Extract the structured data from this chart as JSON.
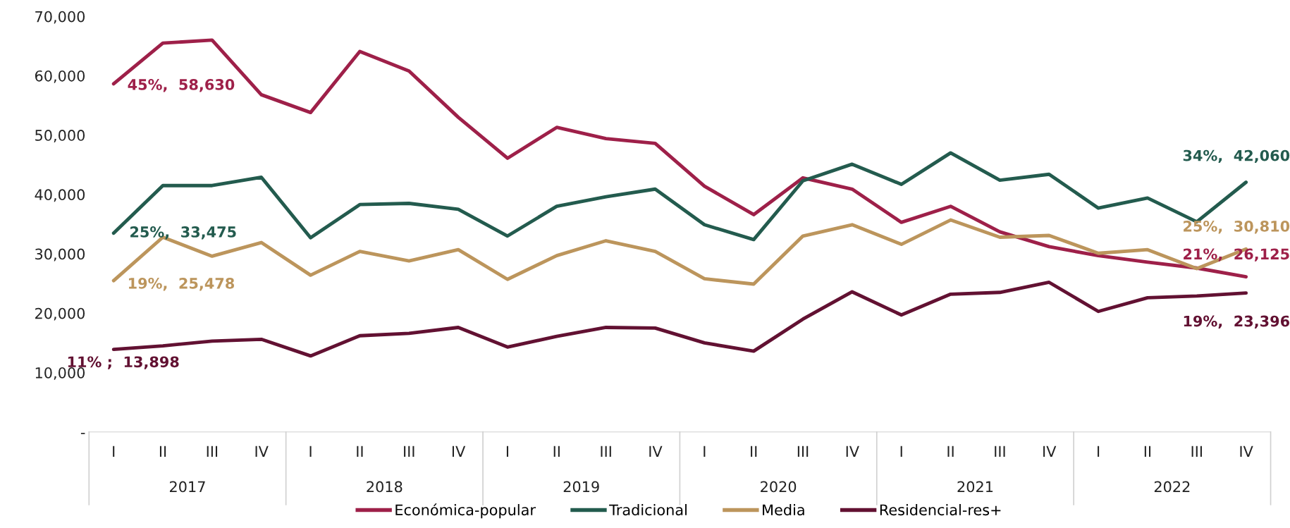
{
  "chart_data": {
    "type": "line",
    "categories": [
      "I",
      "II",
      "III",
      "IV",
      "I",
      "II",
      "III",
      "IV",
      "I",
      "II",
      "III",
      "IV",
      "I",
      "II",
      "III",
      "IV",
      "I",
      "II",
      "III",
      "IV",
      "I",
      "II",
      "III",
      "IV"
    ],
    "series": [
      {
        "name": "Económica-popular",
        "color": "#9e2049",
        "values": [
          58630,
          65500,
          66000,
          56800,
          53800,
          64100,
          60800,
          53000,
          46100,
          51300,
          49400,
          48600,
          41400,
          36600,
          42800,
          40900,
          35300,
          38000,
          33700,
          31200,
          29700,
          28600,
          27600,
          26125
        ],
        "value_labels": [
          "45%,  58,630",
          null,
          null,
          null,
          null,
          null,
          null,
          null,
          null,
          null,
          null,
          null,
          null,
          null,
          null,
          null,
          null,
          null,
          null,
          null,
          null,
          null,
          null,
          "21%,  26,125"
        ]
      },
      {
        "name": "Tradicional",
        "color": "#235b4e",
        "values": [
          33475,
          41500,
          41500,
          42900,
          32700,
          38300,
          38500,
          37500,
          33000,
          38000,
          39600,
          40900,
          34900,
          32400,
          42300,
          45100,
          41700,
          47000,
          42400,
          43400,
          37700,
          39400,
          35400,
          42060
        ],
        "value_labels": [
          "25%,  33,475",
          null,
          null,
          null,
          null,
          null,
          null,
          null,
          null,
          null,
          null,
          null,
          null,
          null,
          null,
          null,
          null,
          null,
          null,
          null,
          null,
          null,
          null,
          "34%,  42,060"
        ]
      },
      {
        "name": "Media",
        "color": "#bc955c",
        "values": [
          25478,
          32800,
          29600,
          31900,
          26400,
          30400,
          28800,
          30700,
          25700,
          29700,
          32200,
          30400,
          25800,
          24900,
          33000,
          34900,
          31600,
          35700,
          32800,
          33100,
          30100,
          30700,
          27500,
          30810
        ],
        "value_labels": [
          "19%,  25,478",
          null,
          null,
          null,
          null,
          null,
          null,
          null,
          null,
          null,
          null,
          null,
          null,
          null,
          null,
          null,
          null,
          null,
          null,
          null,
          null,
          null,
          null,
          "25%,  30,810"
        ]
      },
      {
        "name": "Residencial-res+",
        "color": "#621132",
        "values": [
          13898,
          14500,
          15300,
          15600,
          12800,
          16200,
          16600,
          17600,
          14300,
          16100,
          17600,
          17500,
          15000,
          13600,
          19000,
          23600,
          19700,
          23200,
          23500,
          25200,
          20300,
          22600,
          22900,
          23396
        ],
        "value_labels": [
          "11% ;  13,898",
          null,
          null,
          null,
          null,
          null,
          null,
          null,
          null,
          null,
          null,
          null,
          null,
          null,
          null,
          null,
          null,
          null,
          null,
          null,
          null,
          null,
          null,
          "19%,  23,396"
        ]
      }
    ],
    "annotations": [
      "2017",
      "2018",
      "2019",
      "2020",
      "2021",
      "2022"
    ],
    "ylim": [
      0,
      70000
    ],
    "yticks": [
      {
        "value": 0,
        "label": "-"
      },
      {
        "value": 10000,
        "label": "10,000"
      },
      {
        "value": 20000,
        "label": "20,000"
      },
      {
        "value": 30000,
        "label": "30,000"
      },
      {
        "value": 40000,
        "label": "40,000"
      },
      {
        "value": 50000,
        "label": "50,000"
      },
      {
        "value": 60000,
        "label": "60,000"
      },
      {
        "value": 70000,
        "label": "70,000"
      }
    ],
    "grid": false,
    "legend": "bottom",
    "marker": "none",
    "line_style": "solid"
  }
}
